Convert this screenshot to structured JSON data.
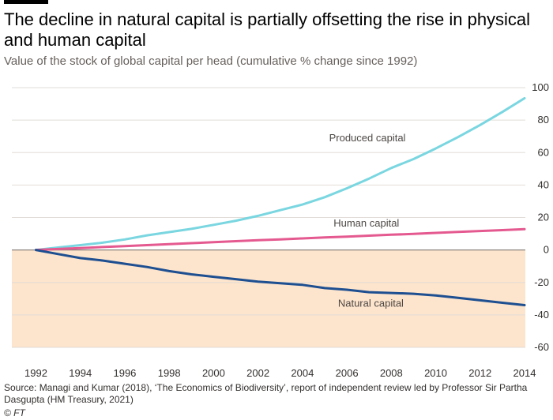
{
  "header": {
    "title": "The decline in natural capital is partially offsetting the rise in physical and human capital",
    "subtitle": "Value of the stock of global capital per head (cumulative % change since 1992)"
  },
  "footer": {
    "source": "Source: Managi and Kumar (2018), ‘The Economics of Biodiversity’, report of independent review led by Professor Sir Partha Dasgupta (HM Treasury, 2021)",
    "credit": "© FT"
  },
  "colors": {
    "produced": "#7ad6e0",
    "human": "#e4598f",
    "natural": "#1d4f91",
    "negative_band": "#fde4cc",
    "grid": "#e2ddd8",
    "zero_line": "#8a8580"
  },
  "chart_data": {
    "type": "line",
    "x": [
      1992,
      1993,
      1994,
      1995,
      1996,
      1997,
      1998,
      1999,
      2000,
      2001,
      2002,
      2003,
      2004,
      2005,
      2006,
      2007,
      2008,
      2009,
      2010,
      2011,
      2012,
      2013,
      2014
    ],
    "x_ticks": [
      "1992",
      "1994",
      "1996",
      "1998",
      "2000",
      "2002",
      "2004",
      "2006",
      "2008",
      "2010",
      "2012",
      "2014"
    ],
    "y_ticks": [
      "100",
      "80",
      "60",
      "40",
      "20",
      "0",
      "-20",
      "-40",
      "-60"
    ],
    "ylim": [
      -60,
      100
    ],
    "xlim": [
      1991,
      2014
    ],
    "grid": true,
    "negative_region_shaded": true,
    "series": [
      {
        "name": "Produced capital",
        "color_key": "produced",
        "values": [
          0,
          1.5,
          3,
          4.5,
          6.5,
          9,
          11,
          13,
          15.5,
          18,
          21,
          24.5,
          28,
          32.5,
          38,
          44,
          50.5,
          56,
          62.5,
          69.5,
          77,
          85,
          93.5
        ]
      },
      {
        "name": "Human capital",
        "color_key": "human",
        "values": [
          0,
          0.6,
          1.2,
          1.8,
          2.4,
          3,
          3.6,
          4.2,
          4.8,
          5.4,
          6,
          6.5,
          7.1,
          7.7,
          8.2,
          8.8,
          9.4,
          9.9,
          10.5,
          11.1,
          11.7,
          12.2,
          12.8
        ]
      },
      {
        "name": "Natural capital",
        "color_key": "natural",
        "values": [
          0,
          -2.5,
          -5,
          -6.5,
          -8.5,
          -10.5,
          -13,
          -15,
          -16.5,
          -18,
          -19.5,
          -20.5,
          -21.5,
          -23.5,
          -24.5,
          -26,
          -26.5,
          -27,
          -28,
          -29.5,
          -31,
          -32.5,
          -34
        ]
      }
    ]
  }
}
